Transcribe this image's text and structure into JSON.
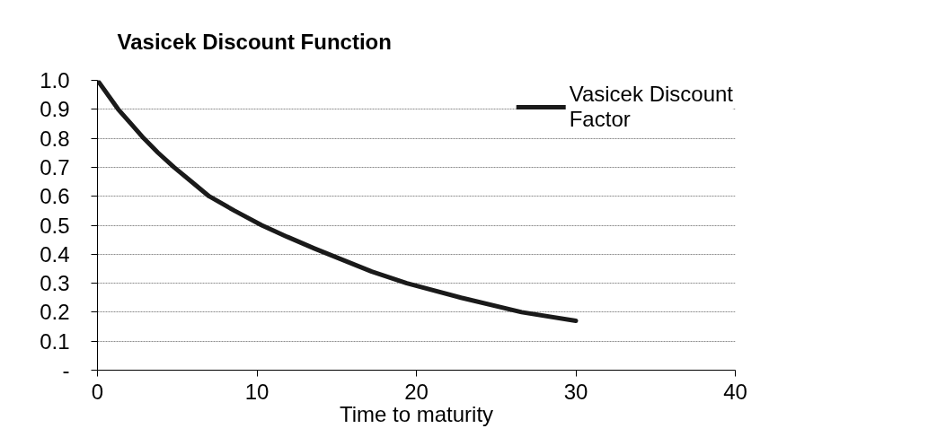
{
  "chart_data": {
    "type": "line",
    "title": "Vasicek Discount Function",
    "xlabel": "Time to maturity",
    "x": [
      0,
      1.3,
      2.1,
      2.9,
      3.8,
      4.8,
      5.9,
      7.0,
      8.6,
      10.3,
      11.9,
      13.6,
      17.2,
      19.4,
      22.8,
      26.6,
      30
    ],
    "series": [
      {
        "name": "Vasicek Discount Factor",
        "color": "#1a1a1a",
        "values": [
          1.0,
          0.9,
          0.85,
          0.8,
          0.75,
          0.7,
          0.65,
          0.6,
          0.55,
          0.5,
          0.46,
          0.42,
          0.34,
          0.3,
          0.25,
          0.2,
          0.17
        ]
      }
    ],
    "xlim": [
      0,
      40
    ],
    "xticks": [
      0,
      10,
      20,
      30,
      40
    ],
    "ylim": [
      0,
      1
    ],
    "yticks": [
      {
        "value": 0,
        "label": "-"
      },
      0.1,
      0.2,
      0.3,
      0.4,
      0.5,
      0.6,
      0.7,
      0.8,
      0.9,
      {
        "value": 1,
        "label": "1.0"
      }
    ],
    "grid": "y",
    "legend": "top right",
    "line_style": "solid",
    "marker": "none"
  }
}
